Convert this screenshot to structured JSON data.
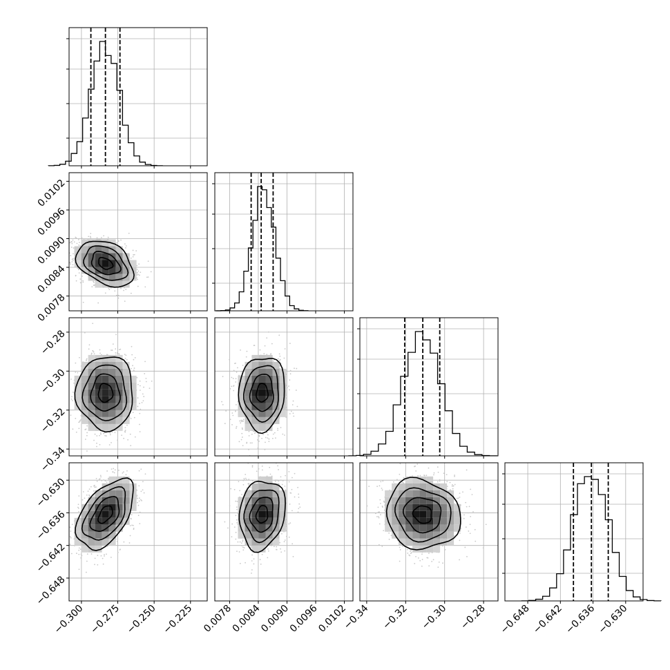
{
  "chart_data": {
    "type": "corner",
    "grid": true,
    "parameters": [
      {
        "ticks": [
          -0.3,
          -0.275,
          -0.25,
          -0.225
        ],
        "tick_labels": [
          "−0.300",
          "−0.275",
          "−0.250",
          "−0.225"
        ],
        "range": [
          -0.3085,
          -0.2135
        ],
        "quantiles": [
          -0.2935,
          -0.2835,
          -0.2735
        ],
        "center": -0.2835,
        "sigma": 0.0098
      },
      {
        "ticks": [
          0.0078,
          0.0084,
          0.009,
          0.0096,
          0.0102
        ],
        "tick_labels": [
          "0.0078",
          "0.0084",
          "0.0090",
          "0.0096",
          "0.0102"
        ],
        "range": [
          0.00749,
          0.01038
        ],
        "quantiles": [
          0.00825,
          0.00846,
          0.00871
        ],
        "center": 0.00848,
        "sigma": 0.00024
      },
      {
        "ticks": [
          -0.34,
          -0.32,
          -0.3,
          -0.28
        ],
        "tick_labels": [
          "−0.34",
          "−0.32",
          "−0.30",
          "−0.28"
        ],
        "range": [
          -0.3435,
          -0.2726
        ],
        "quantiles": [
          -0.3205,
          -0.3112,
          -0.3025
        ],
        "center": -0.3112,
        "sigma": 0.0095
      },
      {
        "ticks": [
          -0.648,
          -0.642,
          -0.636,
          -0.63
        ],
        "tick_labels": [
          "−0.648",
          "−0.642",
          "−0.636",
          "−0.630"
        ],
        "range": [
          -0.6522,
          -0.6268
        ],
        "quantiles": [
          -0.6396,
          -0.6363,
          -0.6332
        ],
        "center": -0.6363,
        "sigma": 0.0032
      }
    ],
    "correlations": [
      [
        1.0,
        -0.35,
        0.0,
        0.5
      ],
      [
        -0.35,
        1.0,
        0.05,
        0.15
      ],
      [
        0.0,
        0.05,
        1.0,
        -0.1
      ],
      [
        0.5,
        0.15,
        -0.1,
        1.0
      ]
    ]
  }
}
